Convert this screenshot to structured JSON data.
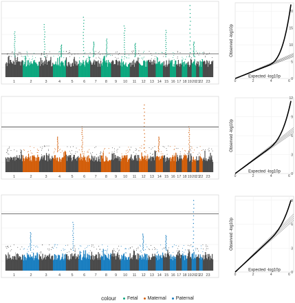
{
  "legend": {
    "title": "colour",
    "items": [
      {
        "label": "Fetal",
        "color": "#0ca77e"
      },
      {
        "label": "Maternal",
        "color": "#d35f0b"
      },
      {
        "label": "Paternal",
        "color": "#1a7fc1"
      }
    ]
  },
  "chart_data": [
    {
      "type": "scatter",
      "subtype": "manhattan",
      "title": "",
      "xlabel": "",
      "ylabel": "",
      "highlight_color": "#0ca77e",
      "base_color": "#4a4a4a",
      "categories": [
        "1",
        "2",
        "3",
        "4",
        "5",
        "6",
        "7",
        "8",
        "9",
        "10",
        "11",
        "12",
        "13",
        "14",
        "15",
        "16",
        "17",
        "18",
        "19",
        "20",
        "21",
        "22",
        "23"
      ],
      "significance_line_frac": 0.32,
      "peaks": [
        {
          "chrom": "1",
          "height": 0.62
        },
        {
          "chrom": "3",
          "height": 0.72
        },
        {
          "chrom": "4",
          "height": 0.44
        },
        {
          "chrom": "6",
          "height": 0.82
        },
        {
          "chrom": "7",
          "height": 0.48
        },
        {
          "chrom": "8",
          "height": 0.52
        },
        {
          "chrom": "10",
          "height": 0.7
        },
        {
          "chrom": "11",
          "height": 0.46
        },
        {
          "chrom": "15",
          "height": 0.64
        },
        {
          "chrom": "19",
          "height": 0.98
        },
        {
          "chrom": "20",
          "height": 0.48
        }
      ]
    },
    {
      "type": "scatter",
      "subtype": "qq",
      "xlabel": "Expected -log10p",
      "ylabel": "Observed -log10p",
      "x_ticks": [
        0,
        2,
        4,
        6
      ],
      "y_ticks": [
        0,
        5,
        10,
        15,
        20
      ],
      "xlim": [
        0,
        6.5
      ],
      "ylim": [
        0,
        22.5
      ],
      "curve_max": 22,
      "ref_slopes": [
        1.0,
        1.05,
        1.1,
        1.15
      ]
    },
    {
      "type": "scatter",
      "subtype": "manhattan",
      "title": "",
      "xlabel": "",
      "ylabel": "",
      "highlight_color": "#d35f0b",
      "base_color": "#4a4a4a",
      "categories": [
        "1",
        "2",
        "3",
        "4",
        "5",
        "6",
        "7",
        "8",
        "9",
        "10",
        "11",
        "12",
        "13",
        "14",
        "15",
        "16",
        "17",
        "18",
        "19",
        "20",
        "21",
        "22",
        "23"
      ],
      "significance_line_frac": 0.62,
      "peaks": [
        {
          "chrom": "4",
          "height": 0.48
        },
        {
          "chrom": "6",
          "height": 0.62
        },
        {
          "chrom": "12",
          "height": 0.92
        },
        {
          "chrom": "14",
          "height": 0.48
        },
        {
          "chrom": "19",
          "height": 0.62
        }
      ]
    },
    {
      "type": "scatter",
      "subtype": "qq",
      "xlabel": "Expected -log10p",
      "ylabel": "Observed -log10p",
      "x_ticks": [
        0,
        2,
        4,
        6
      ],
      "y_ticks": [
        0,
        3,
        6,
        9,
        12
      ],
      "xlim": [
        0,
        6.5
      ],
      "ylim": [
        0,
        12
      ],
      "curve_max": 11.5,
      "ref_slopes": [
        1.0,
        1.04,
        1.08,
        1.12
      ]
    },
    {
      "type": "scatter",
      "subtype": "manhattan",
      "title": "",
      "xlabel": "",
      "ylabel": "",
      "highlight_color": "#1a7fc1",
      "base_color": "#4a4a4a",
      "categories": [
        "1",
        "2",
        "3",
        "4",
        "5",
        "6",
        "7",
        "8",
        "9",
        "10",
        "11",
        "12",
        "13",
        "14",
        "15",
        "16",
        "17",
        "18",
        "19",
        "20",
        "21",
        "22",
        "23"
      ],
      "significance_line_frac": 0.78,
      "peaks": [
        {
          "chrom": "2",
          "height": 0.52
        },
        {
          "chrom": "5",
          "height": 0.66
        },
        {
          "chrom": "12",
          "height": 0.5
        },
        {
          "chrom": "15",
          "height": 0.48
        },
        {
          "chrom": "20",
          "height": 0.96
        }
      ]
    },
    {
      "type": "scatter",
      "subtype": "qq",
      "xlabel": "Expected -log10p",
      "ylabel": "Observed -log10p",
      "x_ticks": [
        0,
        2,
        4,
        6
      ],
      "y_ticks": [
        0,
        3,
        6,
        9
      ],
      "xlim": [
        0,
        6.5
      ],
      "ylim": [
        0,
        9.5
      ],
      "curve_max": 9,
      "ref_slopes": [
        1.0,
        1.04,
        1.08,
        1.12
      ]
    }
  ]
}
